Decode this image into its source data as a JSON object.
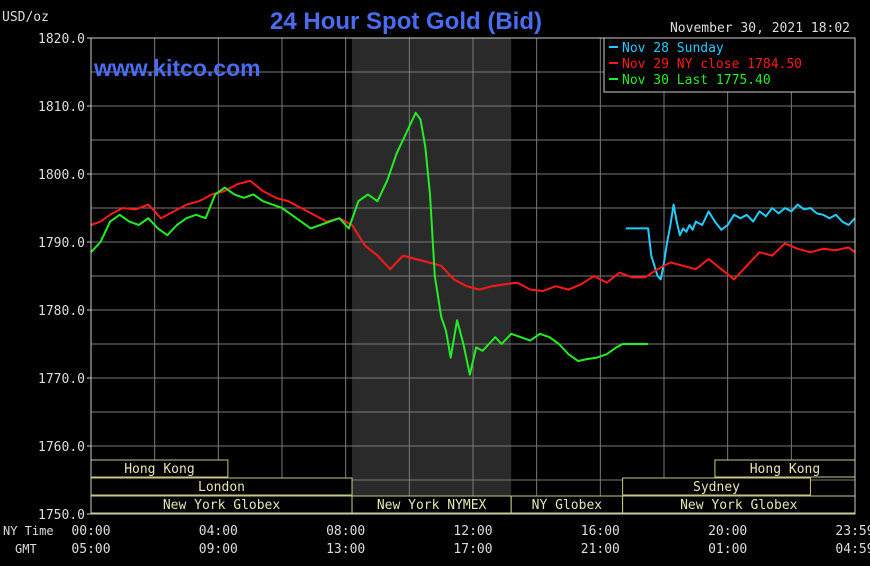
{
  "chart_data": {
    "type": "line",
    "title": "24 Hour Spot Gold (Bid)",
    "ylabel": "USD/oz",
    "timestamp": "November 30, 2021 18:02",
    "watermark": "www.kitco.com",
    "ylim": [
      1750,
      1820
    ],
    "y_ticks": [
      "1820.0",
      "1810.0",
      "1800.0",
      "1790.0",
      "1780.0",
      "1770.0",
      "1760.0",
      "1750.0"
    ],
    "x_range_hours": [
      0,
      24
    ],
    "x_row_labels": [
      "NY Time",
      "GMT"
    ],
    "x_ticks": [
      {
        "ny": "00:00",
        "gmt": "05:00"
      },
      {
        "ny": "04:00",
        "gmt": "09:00"
      },
      {
        "ny": "08:00",
        "gmt": "13:00"
      },
      {
        "ny": "12:00",
        "gmt": "17:00"
      },
      {
        "ny": "16:00",
        "gmt": "21:00"
      },
      {
        "ny": "20:00",
        "gmt": "01:00"
      },
      {
        "ny": "23:59",
        "gmt": "04:59"
      }
    ],
    "legend": [
      {
        "label": "Nov 28 Sunday",
        "color": "#22ccff"
      },
      {
        "label": "Nov 29 NY close 1784.50",
        "color": "#ff1a1a"
      },
      {
        "label": "Nov 30 Last 1775.40",
        "color": "#22ee22"
      }
    ],
    "shaded_session_hours": [
      8.2,
      13.2
    ],
    "sessions": [
      {
        "label": "Hong Kong",
        "start": 0,
        "end": 4.3,
        "row": 0
      },
      {
        "label": "London",
        "start": 0,
        "end": 8.2,
        "row": 1
      },
      {
        "label": "New York Globex",
        "start": 0,
        "end": 8.2,
        "row": 2
      },
      {
        "label": "New York NYMEX",
        "start": 8.2,
        "end": 13.2,
        "row": 2
      },
      {
        "label": "NY Globex",
        "start": 13.2,
        "end": 16.7,
        "row": 2
      },
      {
        "label": "Sydney",
        "start": 16.7,
        "end": 22.6,
        "row": 1
      },
      {
        "label": "Hong Kong",
        "start": 19.6,
        "end": 24,
        "row": 0
      },
      {
        "label": "New York Globex",
        "start": 16.7,
        "end": 24,
        "row": 2
      }
    ],
    "series": [
      {
        "name": "Nov 28 Sunday",
        "color": "#22ccff",
        "x": [
          16.8,
          17.5,
          17.6,
          17.7,
          17.8,
          17.9,
          18.0,
          18.1,
          18.2,
          18.3,
          18.4,
          18.5,
          18.6,
          18.7,
          18.8,
          18.9,
          19.0,
          19.2,
          19.4,
          19.6,
          19.8,
          20.0,
          20.2,
          20.4,
          20.6,
          20.8,
          21.0,
          21.2,
          21.4,
          21.6,
          21.8,
          22.0,
          22.2,
          22.4,
          22.6,
          22.8,
          23.0,
          23.2,
          23.4,
          23.6,
          23.8,
          24.0
        ],
        "y": [
          1792.0,
          1792.0,
          1788.0,
          1786.5,
          1785.0,
          1784.5,
          1787.0,
          1790.0,
          1792.5,
          1795.5,
          1793.0,
          1791.0,
          1792.0,
          1791.5,
          1792.5,
          1791.8,
          1793.0,
          1792.5,
          1794.5,
          1793.0,
          1791.8,
          1792.5,
          1794.0,
          1793.5,
          1794.0,
          1793.0,
          1794.5,
          1793.8,
          1795.0,
          1794.2,
          1795.0,
          1794.5,
          1795.5,
          1794.8,
          1795.0,
          1794.2,
          1794.0,
          1793.5,
          1794.0,
          1793.0,
          1792.5,
          1793.5
        ]
      },
      {
        "name": "Nov 29 NY close 1784.50",
        "color": "#ff1a1a",
        "x": [
          0.0,
          0.3,
          0.6,
          1.0,
          1.4,
          1.8,
          2.2,
          2.6,
          3.0,
          3.4,
          3.8,
          4.2,
          4.6,
          5.0,
          5.4,
          5.8,
          6.2,
          6.6,
          7.0,
          7.4,
          7.8,
          8.2,
          8.6,
          9.0,
          9.4,
          9.8,
          10.2,
          10.6,
          11.0,
          11.4,
          11.8,
          12.2,
          12.6,
          13.0,
          13.4,
          13.8,
          14.2,
          14.6,
          15.0,
          15.4,
          15.8,
          16.2,
          16.6,
          17.0,
          17.4,
          17.8,
          18.2,
          18.6,
          19.0,
          19.4,
          19.8,
          20.2,
          20.6,
          21.0,
          21.4,
          21.8,
          22.2,
          22.6,
          23.0,
          23.4,
          23.8,
          24.0
        ],
        "y": [
          1792.5,
          1793.0,
          1794.0,
          1795.0,
          1794.8,
          1795.5,
          1793.5,
          1794.5,
          1795.5,
          1796.0,
          1797.0,
          1797.5,
          1798.5,
          1799.0,
          1797.5,
          1796.5,
          1796.0,
          1795.0,
          1794.0,
          1793.0,
          1793.5,
          1792.5,
          1789.5,
          1788.0,
          1786.0,
          1788.0,
          1787.5,
          1787.0,
          1786.5,
          1784.5,
          1783.5,
          1783.0,
          1783.5,
          1783.8,
          1784.0,
          1783.0,
          1782.8,
          1783.5,
          1783.0,
          1783.8,
          1785.0,
          1784.0,
          1785.5,
          1784.8,
          1784.8,
          1786.0,
          1787.0,
          1786.5,
          1786.0,
          1787.5,
          1786.0,
          1784.5,
          1786.5,
          1788.5,
          1788.0,
          1789.8,
          1789.0,
          1788.5,
          1789.0,
          1788.8,
          1789.2,
          1788.5
        ]
      },
      {
        "name": "Nov 30 Last 1775.40",
        "color": "#22ee22",
        "x": [
          0.0,
          0.3,
          0.6,
          0.9,
          1.2,
          1.5,
          1.8,
          2.1,
          2.4,
          2.7,
          3.0,
          3.3,
          3.6,
          3.9,
          4.2,
          4.5,
          4.8,
          5.1,
          5.4,
          5.7,
          6.0,
          6.3,
          6.6,
          6.9,
          7.2,
          7.5,
          7.8,
          8.1,
          8.4,
          8.7,
          9.0,
          9.3,
          9.6,
          9.9,
          10.2,
          10.35,
          10.5,
          10.65,
          10.8,
          11.0,
          11.15,
          11.3,
          11.5,
          11.7,
          11.9,
          12.1,
          12.3,
          12.5,
          12.7,
          12.9,
          13.2,
          13.5,
          13.8,
          14.1,
          14.4,
          14.7,
          15.0,
          15.3,
          15.6,
          15.9,
          16.2,
          16.5,
          16.7,
          17.0,
          17.5
        ],
        "y": [
          1788.5,
          1790.0,
          1793.0,
          1794.0,
          1793.0,
          1792.5,
          1793.5,
          1792.0,
          1791.0,
          1792.5,
          1793.5,
          1794.0,
          1793.5,
          1797.0,
          1798.0,
          1797.0,
          1796.5,
          1797.0,
          1796.0,
          1795.5,
          1795.0,
          1794.0,
          1793.0,
          1792.0,
          1792.5,
          1793.0,
          1793.5,
          1792.0,
          1796.0,
          1797.0,
          1796.0,
          1799.0,
          1803.0,
          1806.0,
          1809.0,
          1808.0,
          1804.0,
          1797.0,
          1785.0,
          1779.0,
          1777.0,
          1773.0,
          1778.5,
          1775.0,
          1770.5,
          1774.5,
          1774.0,
          1775.0,
          1776.0,
          1775.0,
          1776.5,
          1776.0,
          1775.5,
          1776.5,
          1776.0,
          1775.0,
          1773.5,
          1772.5,
          1772.8,
          1773.0,
          1773.5,
          1774.5,
          1775.0,
          1775.0,
          1775.0
        ]
      }
    ]
  },
  "colors": {
    "background": "#000000",
    "frame": "#cccccc",
    "grid": "#7a7a7a",
    "shade": "#2a2a2a",
    "title": "#4a6cf0",
    "watermark": "#4a6cf0",
    "axis_text": "#dddddd",
    "session_border": "#c8c880",
    "session_text": "#e6e6b4"
  }
}
